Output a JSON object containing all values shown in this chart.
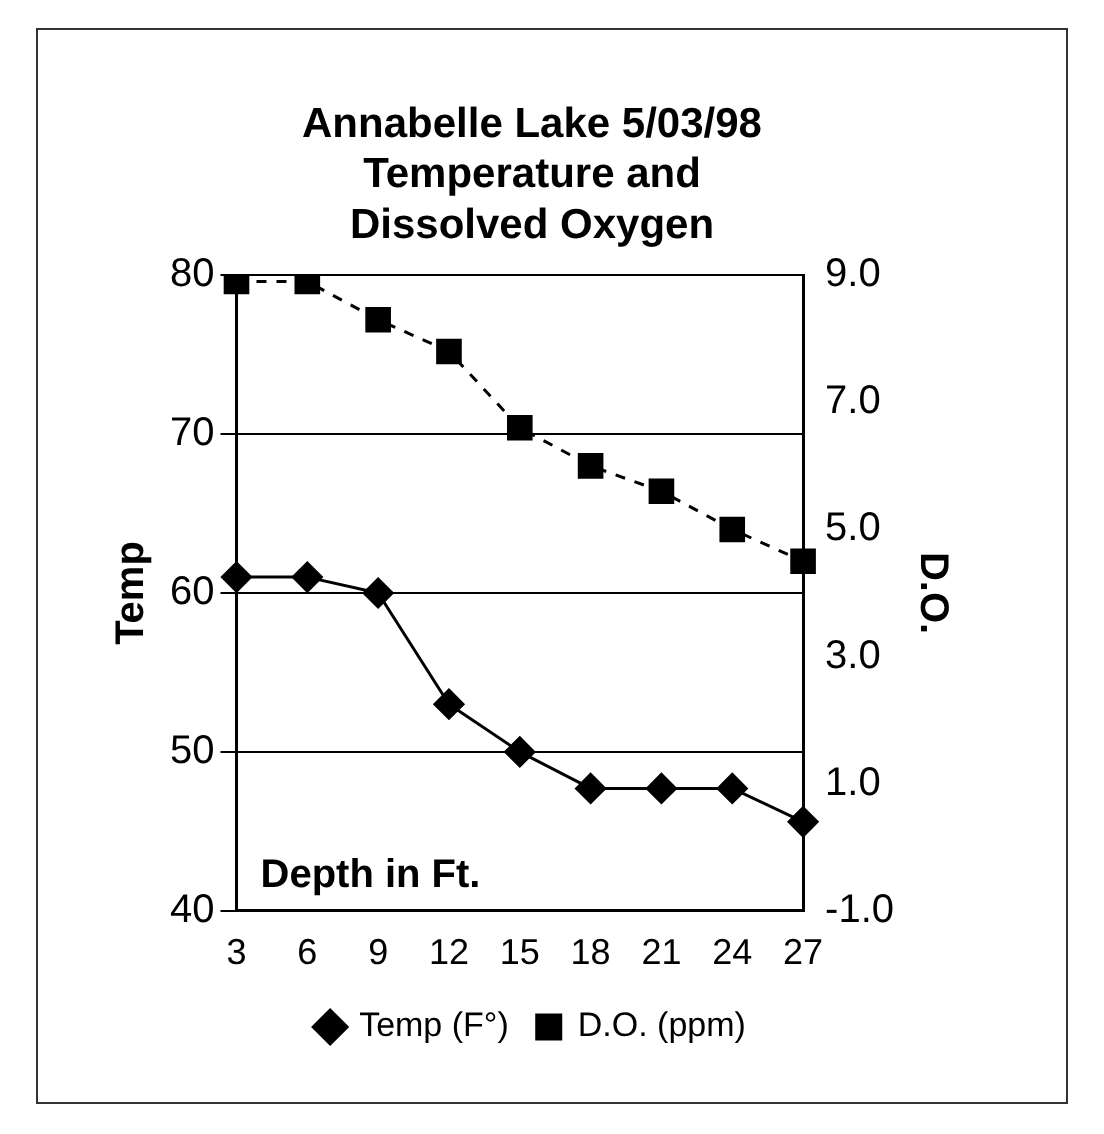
{
  "chart_data": {
    "type": "line",
    "title": "Annabelle Lake 5/03/98 Temperature and Dissolved Oxygen",
    "xlabel": "Depth in Ft.",
    "ylabel": "Temp",
    "y2label": "D.O.",
    "categories": [
      "3",
      "6",
      "9",
      "12",
      "15",
      "18",
      "21",
      "24",
      "27"
    ],
    "series": [
      {
        "name": "Temp (F°)",
        "color": "#000000",
        "marker": "diamond",
        "line_style": "solid",
        "values": [
          61,
          61,
          60,
          53,
          50,
          47.7,
          47.7,
          47.7,
          45.6
        ]
      },
      {
        "name": "D.O. (ppm)",
        "color": "#000000",
        "marker": "square",
        "line_style": "dashed",
        "axis": "y2",
        "values": [
          8.9,
          8.9,
          8.3,
          7.8,
          6.6,
          6.0,
          5.6,
          5.0,
          4.5
        ]
      }
    ],
    "ylim": [
      40,
      80
    ],
    "yticks": [
      40,
      50,
      60,
      70,
      80
    ],
    "y2lim": [
      -1,
      9
    ],
    "y2ticks": [
      {
        "value": -1,
        "label": "-1.0"
      },
      {
        "value": 1,
        "label": "1.0"
      },
      {
        "value": 3,
        "label": "3.0"
      },
      {
        "value": 5,
        "label": "5.0"
      },
      {
        "value": 7,
        "label": "7.0"
      },
      {
        "value": 9,
        "label": "9.0"
      }
    ],
    "grid": "y",
    "legend": "bottom"
  }
}
